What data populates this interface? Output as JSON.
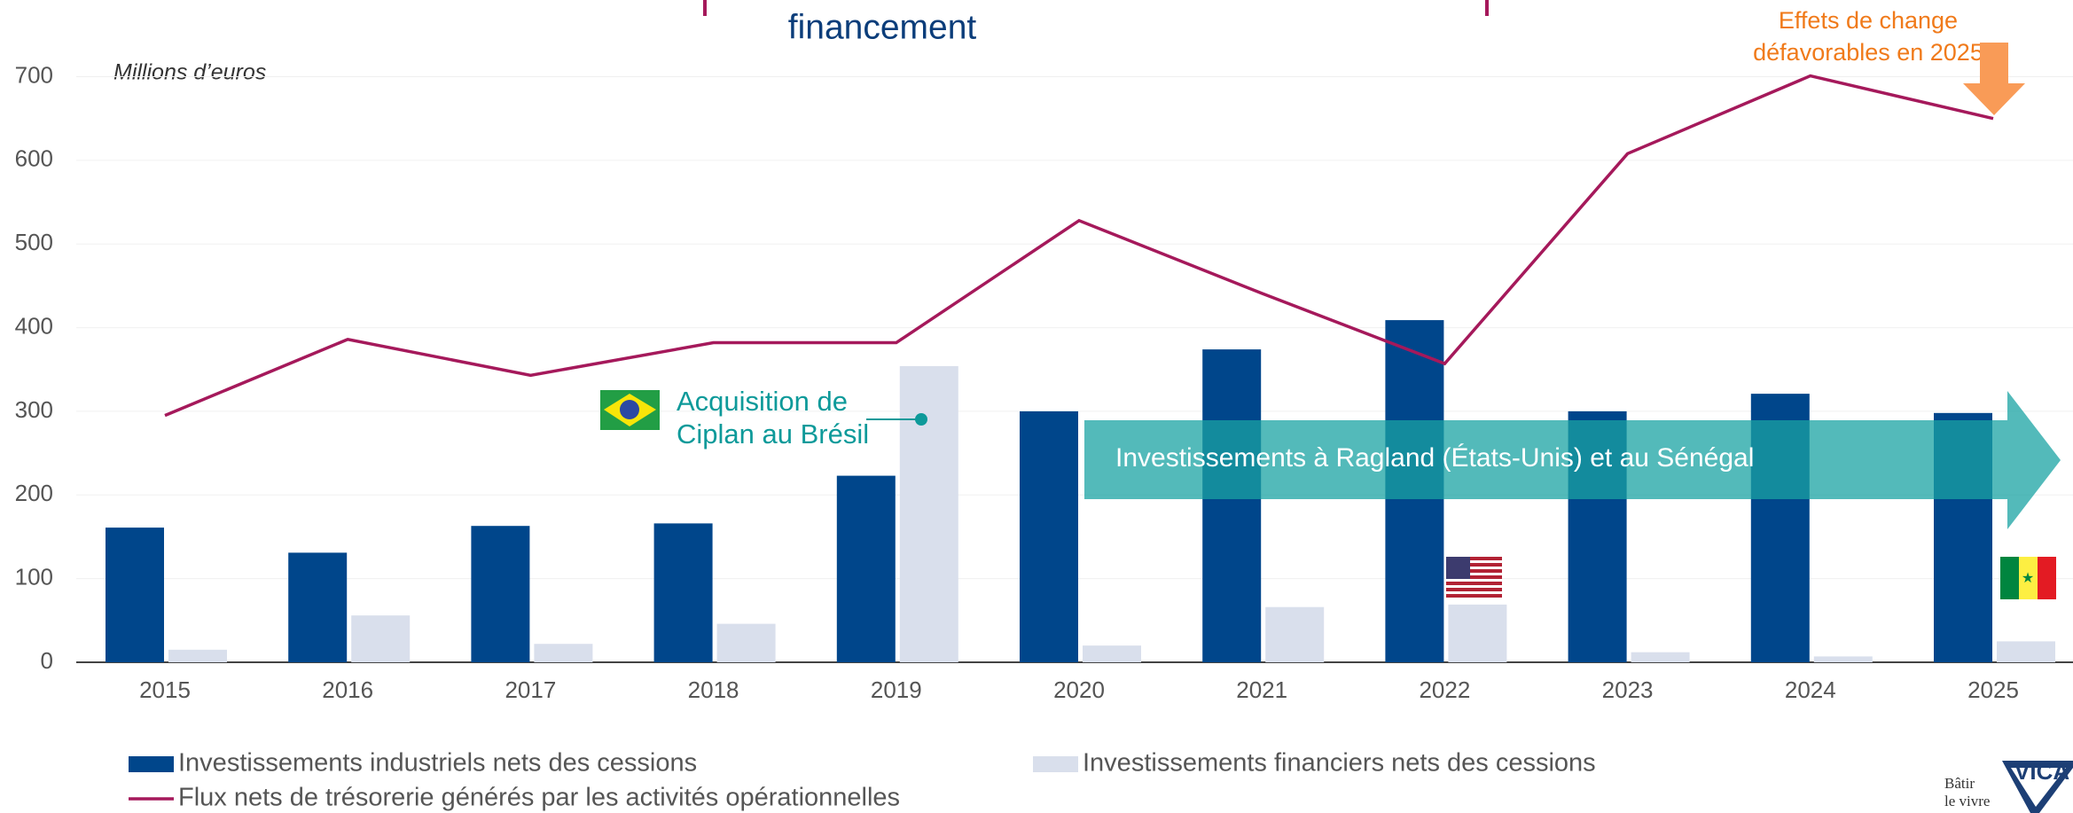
{
  "chart_data": {
    "type": "bar",
    "title": "financement",
    "y_label": "Millions d’euros",
    "categories": [
      "2015",
      "2016",
      "2017",
      "2018",
      "2019",
      "2020",
      "2021",
      "2022",
      "2023",
      "2024",
      "2025"
    ],
    "series": [
      {
        "name": "Investissements industriels nets des cessions",
        "color": "#00468b",
        "type": "bar",
        "values": [
          161,
          131,
          163,
          166,
          223,
          300,
          374,
          409,
          300,
          321,
          298
        ]
      },
      {
        "name": "Investissements financiers nets des cessions",
        "color": "#d9dfec",
        "type": "bar",
        "values": [
          15,
          56,
          22,
          46,
          354,
          20,
          66,
          69,
          12,
          7,
          25
        ]
      },
      {
        "name": "Flux nets de trésorerie générés par les activités opérationnelles",
        "color": "#a5195b",
        "type": "line",
        "values": [
          295,
          386,
          343,
          382,
          382,
          528,
          441,
          357,
          608,
          701,
          650
        ]
      }
    ],
    "ylim": [
      0,
      700
    ],
    "yticks": [
      0,
      100,
      200,
      300,
      400,
      500,
      600,
      700
    ],
    "grid": true,
    "annotations": {
      "acquisition": [
        "Acquisition de",
        "Ciplan au Brésil"
      ],
      "arrow": "Investissements à Ragland (États-Unis) et au Sénégal",
      "fx": [
        "Effets de change",
        "défavorables en 2025"
      ]
    },
    "logo": [
      "Bâtir",
      "le vivre",
      "VICA"
    ]
  }
}
